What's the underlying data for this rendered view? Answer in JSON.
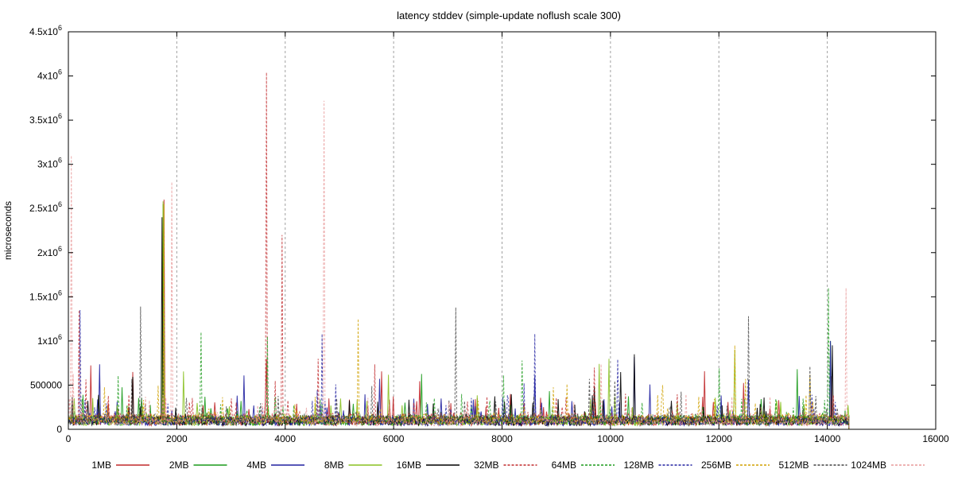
{
  "chart_data": {
    "type": "line",
    "title": "latency stddev (simple-update noflush scale 300)",
    "xlabel": "",
    "ylabel": "microseconds",
    "xlim": [
      0,
      16000
    ],
    "ylim": [
      0,
      4500000
    ],
    "x_ticks": [
      {
        "value": 0,
        "label": "0"
      },
      {
        "value": 2000,
        "label": "2000"
      },
      {
        "value": 4000,
        "label": "4000"
      },
      {
        "value": 6000,
        "label": "6000"
      },
      {
        "value": 8000,
        "label": "8000"
      },
      {
        "value": 10000,
        "label": "10000"
      },
      {
        "value": 12000,
        "label": "12000"
      },
      {
        "value": 14000,
        "label": "14000"
      },
      {
        "value": 16000,
        "label": "16000"
      }
    ],
    "y_ticks": [
      {
        "value": 0,
        "mant": "0",
        "exp": ""
      },
      {
        "value": 500000,
        "mant": "500000",
        "exp": ""
      },
      {
        "value": 1000000,
        "mant": "1x10",
        "exp": "6"
      },
      {
        "value": 1500000,
        "mant": "1.5x10",
        "exp": "6"
      },
      {
        "value": 2000000,
        "mant": "2x10",
        "exp": "6"
      },
      {
        "value": 2500000,
        "mant": "2.5x10",
        "exp": "6"
      },
      {
        "value": 3000000,
        "mant": "3x10",
        "exp": "6"
      },
      {
        "value": 3500000,
        "mant": "3.5x10",
        "exp": "6"
      },
      {
        "value": 4000000,
        "mant": "4x10",
        "exp": "6"
      },
      {
        "value": 4500000,
        "mant": "4.5x10",
        "exp": "6"
      }
    ],
    "vertical_grid_x": [
      2000,
      4000,
      6000,
      8000,
      10000,
      12000,
      14000
    ],
    "grid": "vertical-dashed",
    "legend_placement": "bottom",
    "x_end": 14400,
    "series": [
      {
        "name": "1MB",
        "color": "#c0282a",
        "dash": "solid",
        "baseline": 120000,
        "peaks": [
          [
            1760,
            2600000
          ],
          [
            14080,
            600000
          ],
          [
            8400,
            300000
          ]
        ]
      },
      {
        "name": "2MB",
        "color": "#1a9a1a",
        "dash": "solid",
        "baseline": 130000,
        "peaks": [
          [
            1750,
            2550000
          ],
          [
            13450,
            680000
          ],
          [
            14050,
            1000000
          ]
        ]
      },
      {
        "name": "4MB",
        "color": "#2020a0",
        "dash": "solid",
        "baseline": 120000,
        "peaks": [
          [
            8600,
            600000
          ],
          [
            10440,
            820000
          ],
          [
            14060,
            1000000
          ]
        ]
      },
      {
        "name": "8MB",
        "color": "#88c020",
        "dash": "solid",
        "baseline": 120000,
        "peaks": [
          [
            1740,
            2580000
          ],
          [
            12300,
            900000
          ],
          [
            9800,
            740000
          ]
        ]
      },
      {
        "name": "16MB",
        "color": "#000000",
        "dash": "solid",
        "baseline": 120000,
        "peaks": [
          [
            1720,
            2400000
          ],
          [
            10440,
            850000
          ],
          [
            14100,
            950000
          ]
        ]
      },
      {
        "name": "32MB",
        "color": "#c0282a",
        "dash": "dashed",
        "baseline": 150000,
        "peaks": [
          [
            3650,
            4040000
          ],
          [
            3950,
            2200000
          ],
          [
            200,
            1350000
          ]
        ]
      },
      {
        "name": "64MB",
        "color": "#1a9a1a",
        "dash": "dashed",
        "baseline": 130000,
        "peaks": [
          [
            14020,
            1600000
          ],
          [
            2450,
            1100000
          ],
          [
            3680,
            1050000
          ]
        ]
      },
      {
        "name": "128MB",
        "color": "#2020a0",
        "dash": "dashed",
        "baseline": 120000,
        "peaks": [
          [
            220,
            1350000
          ],
          [
            4680,
            1080000
          ],
          [
            8600,
            1080000
          ]
        ]
      },
      {
        "name": "256MB",
        "color": "#d0a000",
        "dash": "dashed",
        "baseline": 140000,
        "peaks": [
          [
            1760,
            2550000
          ],
          [
            5350,
            1250000
          ],
          [
            12300,
            950000
          ]
        ]
      },
      {
        "name": "512MB",
        "color": "#404040",
        "dash": "dashed",
        "baseline": 140000,
        "peaks": [
          [
            1330,
            1390000
          ],
          [
            7150,
            1380000
          ],
          [
            12550,
            1280000
          ]
        ]
      },
      {
        "name": "1024MB",
        "color": "#e89a9a",
        "dash": "dashed",
        "baseline": 110000,
        "peaks": [
          [
            60,
            3100000
          ],
          [
            4720,
            3720000
          ],
          [
            1900,
            2800000
          ],
          [
            14350,
            1600000
          ]
        ]
      }
    ]
  }
}
